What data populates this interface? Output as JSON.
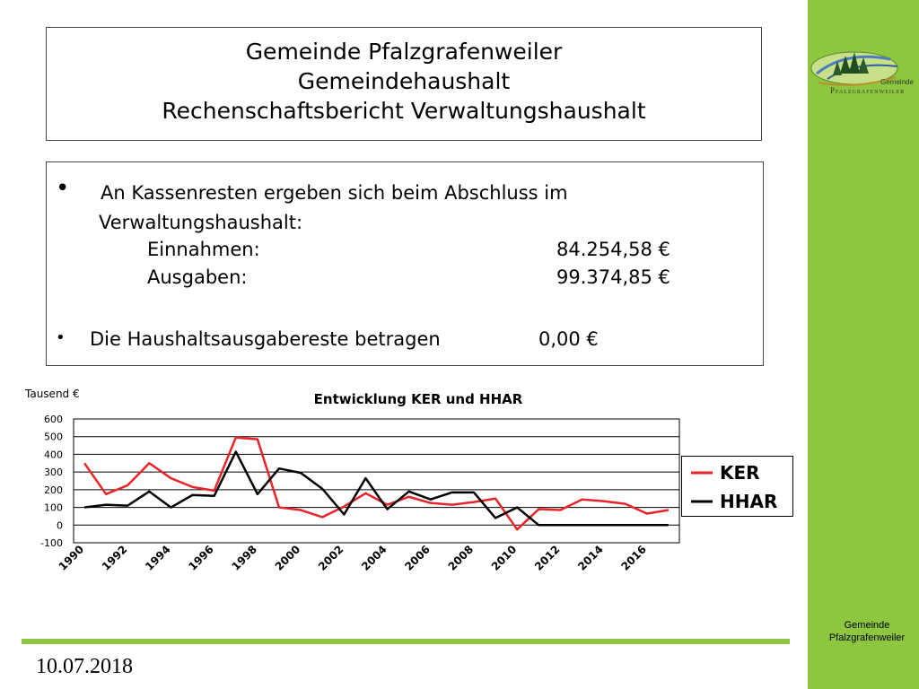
{
  "title": {
    "line1": "Gemeinde Pfalzgrafenweiler",
    "line2": "Gemeindehaushalt",
    "line3": "Rechenschaftsbericht Verwaltungshaushalt"
  },
  "content": {
    "bullet1_line1": "An Kassenresten ergeben sich beim Abschluss im",
    "bullet1_line2": "Verwaltungshaushalt:",
    "einnahmen_label": "Einnahmen:",
    "einnahmen_value": "84.254,58 €",
    "ausgaben_label": "Ausgaben:",
    "ausgaben_value": "99.374,85 €",
    "bullet2_text": "Die Haushaltsausgabereste betragen",
    "bullet2_value": "0,00 €"
  },
  "logo": {
    "small_text": "Gemeinde",
    "main_text": "Pfalzgrafenweiler"
  },
  "footer": {
    "org_line1": "Gemeinde",
    "org_line2": "Pfalzgrafenweiler",
    "date": "10.07.2018"
  },
  "colors": {
    "sidebar": "#8dc63f",
    "ker": "#e8232a",
    "hhar": "#000000"
  },
  "chart_data": {
    "type": "line",
    "title": "Entwicklung KER und HHAR",
    "ylabel": "Tausend €",
    "ylim": [
      -100,
      600
    ],
    "yticks": [
      -100,
      0,
      100,
      200,
      300,
      400,
      500,
      600
    ],
    "xtick_labels": [
      "1990",
      "1992",
      "1994",
      "1996",
      "1998",
      "2000",
      "2002",
      "2004",
      "2006",
      "2008",
      "2010",
      "2012",
      "2014",
      "2016"
    ],
    "x": [
      1990,
      1991,
      1992,
      1993,
      1994,
      1995,
      1996,
      1997,
      1998,
      1999,
      2000,
      2001,
      2002,
      2003,
      2004,
      2005,
      2006,
      2007,
      2008,
      2009,
      2010,
      2011,
      2012,
      2013,
      2014,
      2015,
      2016,
      2017
    ],
    "grid": "horizontal",
    "legend_position": "right",
    "series": [
      {
        "name": "KER",
        "color": "#e8232a",
        "values": [
          350,
          175,
          225,
          350,
          265,
          215,
          195,
          495,
          485,
          100,
          85,
          45,
          105,
          180,
          115,
          160,
          125,
          115,
          130,
          150,
          -25,
          90,
          85,
          145,
          135,
          120,
          65,
          85
        ]
      },
      {
        "name": "HHAR",
        "color": "#000000",
        "values": [
          100,
          115,
          110,
          190,
          100,
          170,
          165,
          415,
          175,
          320,
          295,
          205,
          60,
          265,
          90,
          190,
          145,
          185,
          185,
          40,
          100,
          0,
          0,
          0,
          0,
          0,
          0,
          0
        ]
      }
    ]
  }
}
